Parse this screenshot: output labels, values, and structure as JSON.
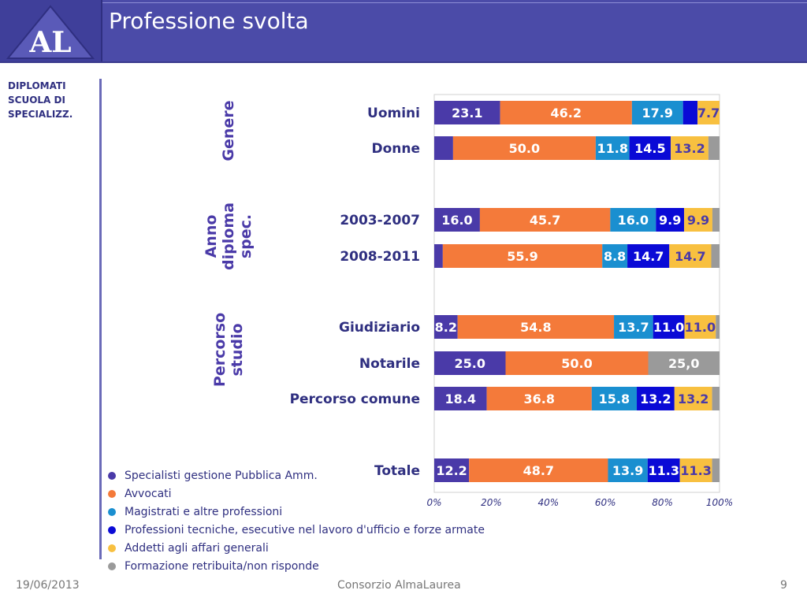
{
  "slide": {
    "title": "Professione svolta",
    "logo_text": "AL",
    "side_label_lines": [
      "DIPLOMATI",
      "SCUOLA DI",
      "SPECIALIZZ."
    ],
    "footer": {
      "date": "19/06/2013",
      "organization": "Consorzio AlmaLaurea",
      "page_number": "9"
    }
  },
  "colors": {
    "header": "#4b4ba8",
    "text_primary": "#2f2f80"
  },
  "chart_data": {
    "type": "bar",
    "orientation": "horizontal",
    "stacked": true,
    "xlim": [
      0,
      100
    ],
    "x_ticks": [
      "0%",
      "20%",
      "40%",
      "60%",
      "80%",
      "100%"
    ],
    "groups": [
      {
        "label": "Genere",
        "label_lines": [
          "Genere"
        ]
      },
      {
        "label": "Anno diploma spec.",
        "label_lines": [
          "Anno",
          "diploma",
          "spec."
        ]
      },
      {
        "label": "Percorso studio",
        "label_lines": [
          "Percorso",
          "studio"
        ]
      }
    ],
    "categories": [
      "Uomini",
      "Donne",
      "2003-2007",
      "2008-2011",
      "Giudiziario",
      "Notarile",
      "Percorso comune",
      "Totale"
    ],
    "category_groups": [
      0,
      0,
      1,
      1,
      2,
      2,
      2,
      null
    ],
    "series": [
      {
        "name": "Specialisti gestione Pubblica Amm.",
        "color": "#4a3aa8",
        "values": [
          23.1,
          6.6,
          16.0,
          3.0,
          8.2,
          25.0,
          18.4,
          12.2
        ],
        "labels": [
          "23.1",
          "",
          "16.0",
          "",
          "8.2",
          "25.0",
          "18.4",
          "12.2"
        ]
      },
      {
        "name": "Avvocati",
        "color": "#f47a3a",
        "values": [
          46.2,
          50.0,
          45.7,
          55.9,
          54.8,
          50.0,
          36.8,
          48.7
        ],
        "labels": [
          "46.2",
          "50.0",
          "45.7",
          "55.9",
          "54.8",
          "50.0",
          "36.8",
          "48.7"
        ]
      },
      {
        "name": "Magistrati e altre professioni",
        "color": "#1a8fd0",
        "values": [
          17.9,
          11.8,
          16.0,
          8.8,
          13.7,
          0,
          15.8,
          13.9
        ],
        "labels": [
          "17.9",
          "11.8",
          "16.0",
          "8.8",
          "13.7",
          "",
          "15.8",
          "13.9"
        ]
      },
      {
        "name": "Professioni tecniche, esecutive nel lavoro d'ufficio e forze armate",
        "color": "#0a0ad6",
        "values": [
          5.1,
          14.5,
          9.9,
          14.7,
          11.0,
          0,
          13.2,
          11.3
        ],
        "labels": [
          "",
          "14.5",
          "9.9",
          "14.7",
          "11.0",
          "",
          "13.2",
          "11.3"
        ]
      },
      {
        "name": "Addetti agli affari generali",
        "color": "#f8c040",
        "values": [
          7.7,
          13.2,
          9.9,
          14.7,
          11.0,
          0,
          13.2,
          11.3
        ],
        "labels": [
          "7.7",
          "13.2",
          "9.9",
          "14.7",
          "11.0",
          "",
          "13.2",
          "11.3"
        ]
      },
      {
        "name": "Formazione retribuita/non risponde",
        "color": "#9a9a9a",
        "values": [
          0,
          3.9,
          2.5,
          2.9,
          1.3,
          25.0,
          2.6,
          2.6
        ],
        "labels": [
          "",
          "",
          "",
          "",
          "",
          "25,0",
          "",
          ""
        ]
      }
    ]
  }
}
